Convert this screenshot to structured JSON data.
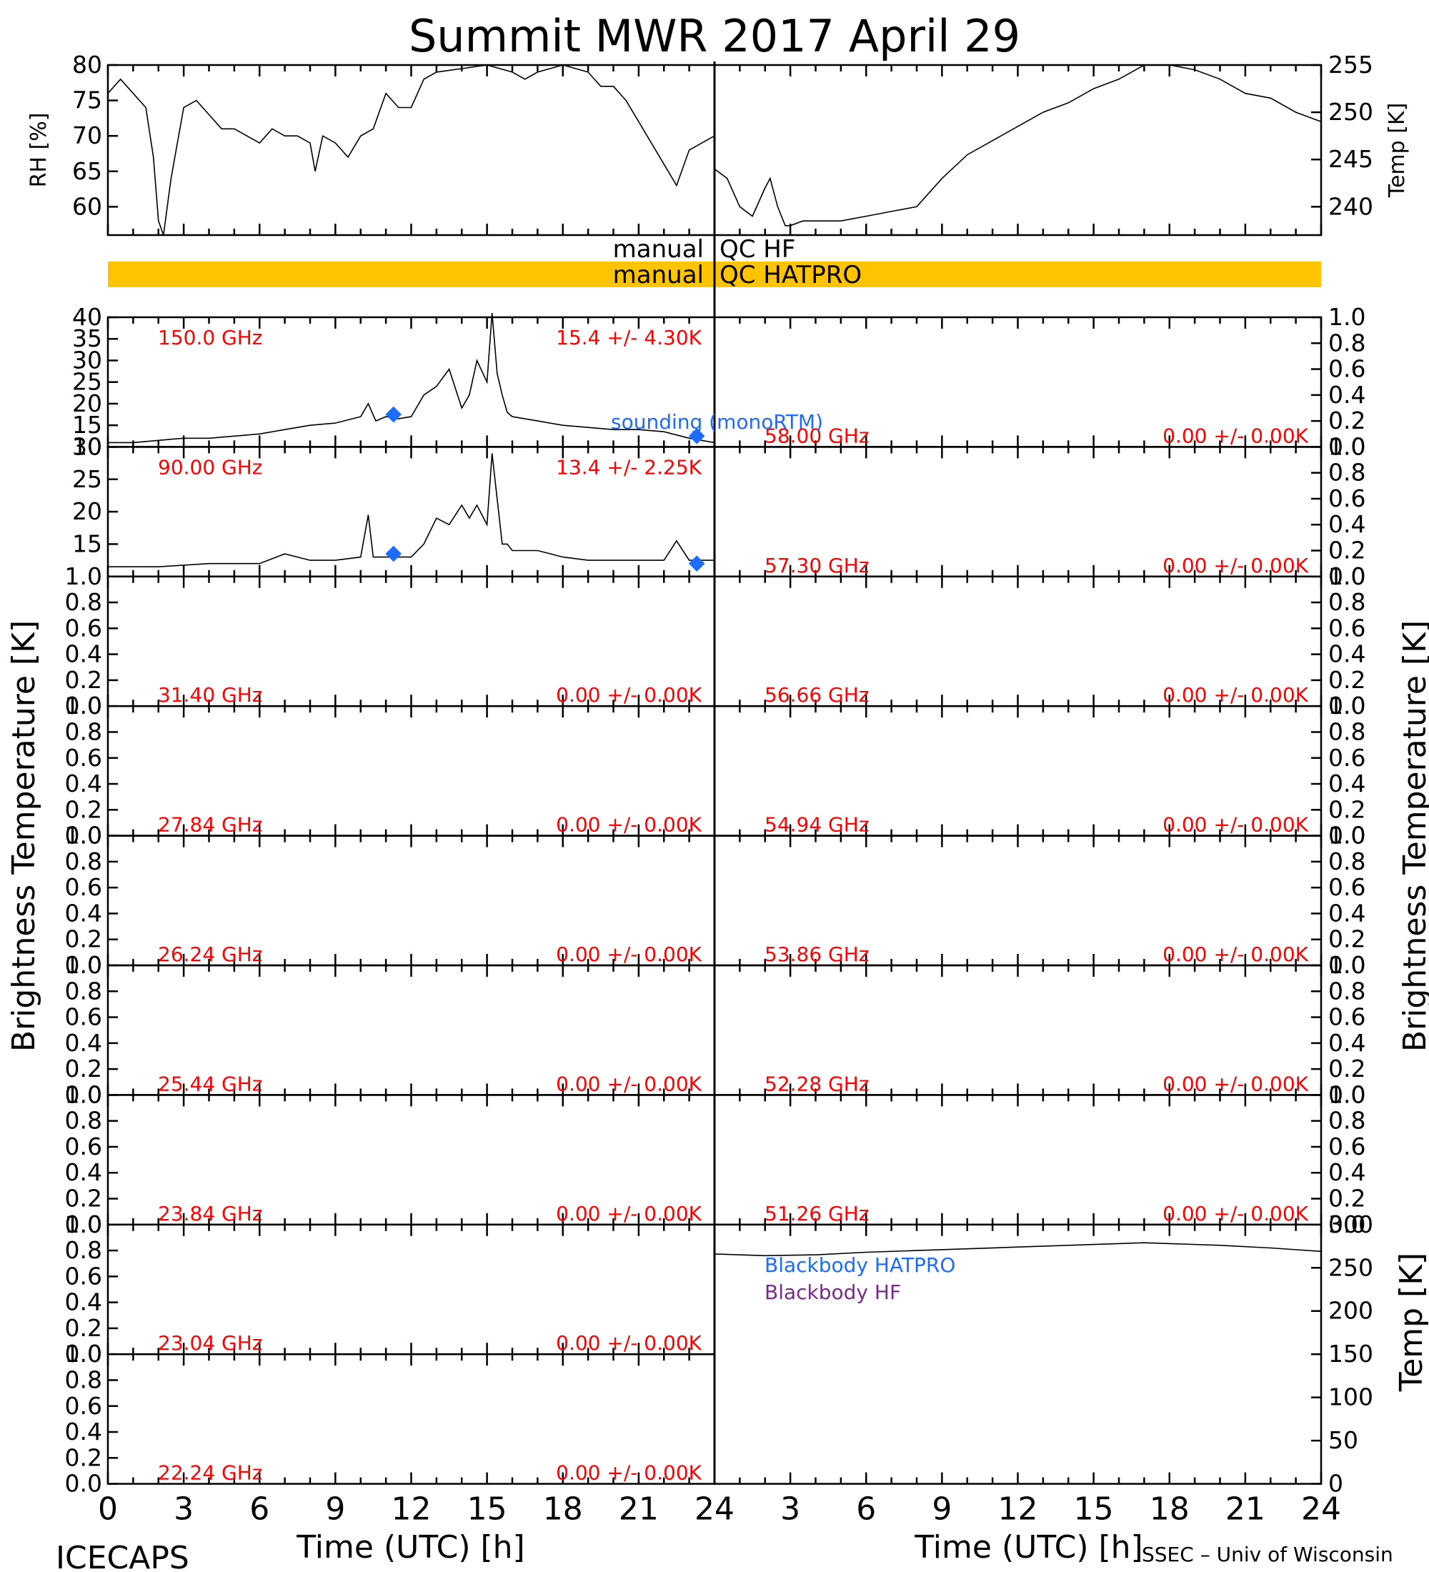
{
  "title": "Summit MWR 2017 April 29",
  "footer_left": "ICECAPS",
  "footer_right": "SSEC – Univ of Wisconsin",
  "qc": {
    "hf_left": "manual",
    "hf_right": "QC HF",
    "hatpro_left": "manual",
    "hatpro_right": "QC HATPRO",
    "hatpro_color": "#ffc400"
  },
  "x_axis_label": "Time (UTC) [h]",
  "x_ticks": [
    "0",
    "3",
    "6",
    "9",
    "12",
    "15",
    "18",
    "21",
    "24"
  ],
  "y_title_bt": "Brightness Temperature [K]",
  "sounding_label": "sounding (monoRTM)",
  "sounding_color": "#1e6bff",
  "bb_hatpro_label": "Blackbody HATPRO",
  "bb_hatpro_color": "#1e6bff",
  "bb_hf_label": "Blackbody HF",
  "bb_hf_color": "#7a2a8a",
  "chart_data": [
    {
      "type": "line",
      "panel": "rh",
      "ylabel": "RH [%]",
      "xlim": [
        0,
        24
      ],
      "ylim": [
        56,
        80
      ],
      "yticks": [
        "60",
        "65",
        "70",
        "75",
        "80"
      ],
      "x": [
        0,
        0.5,
        1,
        1.5,
        1.8,
        2.0,
        2.2,
        2.5,
        3,
        3.5,
        4,
        4.5,
        5,
        5.5,
        6,
        6.5,
        7,
        7.5,
        8,
        8.2,
        8.5,
        9,
        9.5,
        10,
        10.5,
        11,
        11.5,
        12,
        12.5,
        13,
        14,
        15,
        16,
        16.5,
        17,
        18,
        19,
        19.5,
        20,
        20.5,
        21,
        21.5,
        22,
        22.5,
        23,
        23.5,
        24
      ],
      "y": [
        76,
        78,
        76,
        74,
        67,
        58,
        56,
        64,
        74,
        75,
        73,
        71,
        71,
        70,
        69,
        71,
        70,
        70,
        69,
        65,
        70,
        69,
        67,
        70,
        71,
        76,
        74,
        74,
        78,
        79,
        79.5,
        80,
        79,
        78,
        79,
        80,
        79,
        77,
        77,
        75,
        72,
        69,
        66,
        63,
        68,
        69,
        70
      ]
    },
    {
      "type": "line",
      "panel": "temp",
      "ylabel": "Temp [K]",
      "xlim": [
        0,
        24
      ],
      "ylim": [
        237,
        255
      ],
      "yticks": [
        "240",
        "245",
        "250",
        "255"
      ],
      "x": [
        0,
        0.5,
        1,
        1.5,
        2,
        2.2,
        2.5,
        2.8,
        3,
        3.5,
        4,
        5,
        6,
        7,
        8,
        9,
        10,
        11,
        12,
        13,
        14,
        15,
        16,
        17,
        18,
        19,
        20,
        21,
        22,
        23,
        24
      ],
      "y": [
        244,
        243,
        240,
        239,
        242,
        243,
        240,
        238,
        238,
        238.5,
        238.5,
        238.5,
        239,
        239.5,
        240,
        243,
        245.5,
        247,
        248.5,
        250,
        251,
        252.5,
        253.5,
        255,
        255,
        254.5,
        253.5,
        252,
        251.5,
        250,
        249
      ]
    },
    {
      "type": "line",
      "panel": "bt150",
      "freq_label": "150.0 GHz",
      "stat_label": "15.4 +/-  4.30K",
      "xlim": [
        0,
        24
      ],
      "ylim": [
        10,
        40
      ],
      "yticks": [
        "10",
        "15",
        "20",
        "25",
        "30",
        "35",
        "40"
      ],
      "x": [
        0,
        1,
        2,
        3,
        4,
        5,
        6,
        7,
        8,
        9,
        10,
        10.3,
        10.6,
        11,
        11.5,
        12,
        12.5,
        13,
        13.5,
        14,
        14.3,
        14.6,
        15,
        15.2,
        15.4,
        15.6,
        15.8,
        16,
        16.5,
        17,
        18,
        19,
        20,
        21,
        22,
        23,
        24
      ],
      "y": [
        11,
        11,
        11.5,
        12,
        12,
        12.5,
        13,
        14,
        15,
        15.5,
        17,
        20,
        16,
        17,
        16.5,
        17,
        22,
        24,
        28,
        19,
        22,
        30,
        25,
        41,
        27,
        22,
        18,
        17,
        16.5,
        16,
        15,
        14.5,
        14,
        14,
        13.5,
        12,
        11
      ],
      "sounding_x": [
        11.3,
        23.3
      ],
      "sounding_y": [
        17.5,
        12.5
      ]
    },
    {
      "type": "line",
      "panel": "bt90",
      "freq_label": "90.00 GHz",
      "stat_label": "13.4 +/-  2.25K",
      "xlim": [
        0,
        24
      ],
      "ylim": [
        10,
        30
      ],
      "yticks": [
        "15",
        "20",
        "25",
        "30"
      ],
      "x": [
        0,
        2,
        4,
        6,
        7,
        8,
        9,
        10,
        10.3,
        10.5,
        10.8,
        11.5,
        12,
        12.5,
        13,
        13.5,
        14,
        14.3,
        14.6,
        15,
        15.2,
        15.4,
        15.6,
        15.8,
        16,
        17,
        18,
        19,
        20,
        21,
        22,
        22.5,
        23,
        24
      ],
      "y": [
        11.5,
        11.5,
        12,
        12,
        13.5,
        12.5,
        12.5,
        13,
        19.5,
        13,
        13,
        13,
        13,
        15,
        19,
        18,
        21,
        19,
        21,
        18,
        29,
        22,
        15,
        15,
        14,
        14,
        13,
        12.5,
        12.5,
        12.5,
        12.5,
        15.5,
        12.5,
        12.5
      ],
      "sounding_x": [
        11.3,
        23.3
      ],
      "sounding_y": [
        13.5,
        12
      ]
    },
    {
      "type": "line",
      "panel": "bt3140",
      "freq_label": "31.40 GHz",
      "stat_label": "0.00 +/-  0.00K",
      "xlim": [
        0,
        24
      ],
      "ylim": [
        0,
        1
      ],
      "yticks": [
        "0.0",
        "0.2",
        "0.4",
        "0.6",
        "0.8",
        "1.0"
      ],
      "values": []
    },
    {
      "type": "line",
      "panel": "bt2784",
      "freq_label": "27.84 GHz",
      "stat_label": "0.00 +/-  0.00K",
      "xlim": [
        0,
        24
      ],
      "ylim": [
        0,
        1
      ],
      "yticks": [
        "0.0",
        "0.2",
        "0.4",
        "0.6",
        "0.8",
        "1.0"
      ],
      "values": []
    },
    {
      "type": "line",
      "panel": "bt2624",
      "freq_label": "26.24 GHz",
      "stat_label": "0.00 +/-  0.00K",
      "xlim": [
        0,
        24
      ],
      "ylim": [
        0,
        1
      ],
      "yticks": [
        "0.0",
        "0.2",
        "0.4",
        "0.6",
        "0.8",
        "1.0"
      ],
      "values": []
    },
    {
      "type": "line",
      "panel": "bt2544",
      "freq_label": "25.44 GHz",
      "stat_label": "0.00 +/-  0.00K",
      "xlim": [
        0,
        24
      ],
      "ylim": [
        0,
        1
      ],
      "yticks": [
        "0.0",
        "0.2",
        "0.4",
        "0.6",
        "0.8",
        "1.0"
      ],
      "values": []
    },
    {
      "type": "line",
      "panel": "bt2384",
      "freq_label": "23.84 GHz",
      "stat_label": "0.00 +/-  0.00K",
      "xlim": [
        0,
        24
      ],
      "ylim": [
        0,
        1
      ],
      "yticks": [
        "0.0",
        "0.2",
        "0.4",
        "0.6",
        "0.8",
        "1.0"
      ],
      "values": []
    },
    {
      "type": "line",
      "panel": "bt2304",
      "freq_label": "23.04 GHz",
      "stat_label": "0.00 +/-  0.00K",
      "xlim": [
        0,
        24
      ],
      "ylim": [
        0,
        1
      ],
      "yticks": [
        "0.0",
        "0.2",
        "0.4",
        "0.6",
        "0.8",
        "1.0"
      ],
      "values": []
    },
    {
      "type": "line",
      "panel": "bt2224",
      "freq_label": "22.24 GHz",
      "stat_label": "0.00 +/-  0.00K",
      "xlim": [
        0,
        24
      ],
      "ylim": [
        0,
        1
      ],
      "yticks": [
        "0.0",
        "0.2",
        "0.4",
        "0.6",
        "0.8",
        "1.0"
      ],
      "values": []
    },
    {
      "type": "line",
      "panel": "bt5800",
      "freq_label": "58.00 GHz",
      "stat_label": "0.00 +/-  0.00K",
      "xlim": [
        0,
        24
      ],
      "ylim": [
        0,
        1
      ],
      "yticks": [
        "0.0",
        "0.2",
        "0.4",
        "0.6",
        "0.8",
        "1.0"
      ],
      "values": []
    },
    {
      "type": "line",
      "panel": "bt5730",
      "freq_label": "57.30 GHz",
      "stat_label": "0.00 +/-  0.00K",
      "xlim": [
        0,
        24
      ],
      "ylim": [
        0,
        1
      ],
      "yticks": [
        "0.0",
        "0.2",
        "0.4",
        "0.6",
        "0.8",
        "1.0"
      ],
      "values": []
    },
    {
      "type": "line",
      "panel": "bt5666",
      "freq_label": "56.66 GHz",
      "stat_label": "0.00 +/-  0.00K",
      "xlim": [
        0,
        24
      ],
      "ylim": [
        0,
        1
      ],
      "yticks": [
        "0.0",
        "0.2",
        "0.4",
        "0.6",
        "0.8",
        "1.0"
      ],
      "values": []
    },
    {
      "type": "line",
      "panel": "bt5494",
      "freq_label": "54.94 GHz",
      "stat_label": "0.00 +/-  0.00K",
      "xlim": [
        0,
        24
      ],
      "ylim": [
        0,
        1
      ],
      "yticks": [
        "0.0",
        "0.2",
        "0.4",
        "0.6",
        "0.8",
        "1.0"
      ],
      "values": []
    },
    {
      "type": "line",
      "panel": "bt5386",
      "freq_label": "53.86 GHz",
      "stat_label": "0.00 +/-  0.00K",
      "xlim": [
        0,
        24
      ],
      "ylim": [
        0,
        1
      ],
      "yticks": [
        "0.0",
        "0.2",
        "0.4",
        "0.6",
        "0.8",
        "1.0"
      ],
      "values": []
    },
    {
      "type": "line",
      "panel": "bt5228",
      "freq_label": "52.28 GHz",
      "stat_label": "0.00 +/-  0.00K",
      "xlim": [
        0,
        24
      ],
      "ylim": [
        0,
        1
      ],
      "yticks": [
        "0.0",
        "0.2",
        "0.4",
        "0.6",
        "0.8",
        "1.0"
      ],
      "values": []
    },
    {
      "type": "line",
      "panel": "bt5126",
      "freq_label": "51.26 GHz",
      "stat_label": "0.00 +/-  0.00K",
      "xlim": [
        0,
        24
      ],
      "ylim": [
        0,
        1
      ],
      "yticks": [
        "0.0",
        "0.2",
        "0.4",
        "0.6",
        "0.8",
        "1.0"
      ],
      "values": []
    },
    {
      "type": "line",
      "panel": "blackbody",
      "ylabel": "Temp [K]",
      "xlim": [
        0,
        24
      ],
      "ylim": [
        0,
        300
      ],
      "yticks": [
        "0",
        "50",
        "100",
        "150",
        "200",
        "250",
        "300"
      ],
      "series": [
        {
          "name": "Blackbody HF",
          "x": [
            0,
            2,
            4,
            6,
            8,
            10,
            12,
            14,
            16,
            17,
            18,
            20,
            22,
            24
          ],
          "y": [
            266,
            264,
            265,
            268,
            270,
            272,
            274,
            276,
            278,
            279,
            278,
            276,
            273,
            269
          ]
        },
        {
          "name": "Blackbody HATPRO",
          "x": [
            0,
            24
          ],
          "y": [
            0,
            0
          ]
        }
      ]
    }
  ]
}
